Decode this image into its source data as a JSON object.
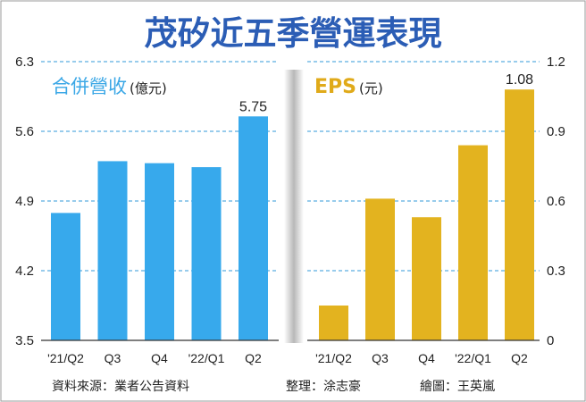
{
  "title": "茂矽近五季營運表現",
  "chart_data": [
    {
      "type": "bar",
      "title": "合併營收",
      "unit": "(億元)",
      "categories": [
        "'21/Q2",
        "Q3",
        "Q4",
        "'22/Q1",
        "Q2"
      ],
      "values": [
        4.78,
        5.3,
        5.28,
        5.24,
        5.75
      ],
      "value_labels": [
        "",
        "",
        "",
        "",
        "5.75"
      ],
      "ylim": [
        3.5,
        6.3
      ],
      "yticks": [
        "6.3",
        "5.6",
        "4.9",
        "4.2",
        "3.5"
      ],
      "ytick_values": [
        6.3,
        5.6,
        4.9,
        4.2,
        3.5
      ],
      "color": "#37a9ec",
      "grid": true
    },
    {
      "type": "bar",
      "title": "EPS",
      "unit": "(元)",
      "categories": [
        "'21/Q2",
        "Q3",
        "Q4",
        "'22/Q1",
        "Q2"
      ],
      "values": [
        0.15,
        0.61,
        0.53,
        0.84,
        1.08
      ],
      "value_labels": [
        "",
        "",
        "",
        "",
        "1.08"
      ],
      "ylim": [
        0,
        1.2
      ],
      "yticks": [
        "1.2",
        "0.9",
        "0.6",
        "0.3",
        "0"
      ],
      "ytick_values": [
        1.2,
        0.9,
        0.6,
        0.3,
        0
      ],
      "color": "#e3b31f",
      "grid": true
    }
  ],
  "footer": {
    "source": "資料來源：業者公告資料",
    "editor": "整理：涂志豪",
    "artist": "繪圖：王英嵐"
  },
  "colors": {
    "title": "#2b5db5",
    "revenue": "#37a9ec",
    "eps": "#e3b31f",
    "grid": "#5aaee0"
  }
}
